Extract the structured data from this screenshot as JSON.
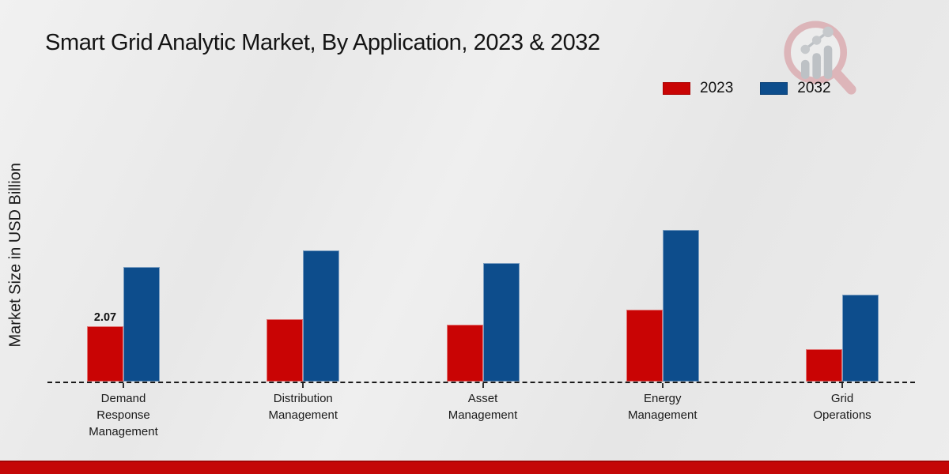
{
  "title": "Smart Grid Analytic Market, By Application, 2023 & 2032",
  "y_axis_label": "Market Size in USD Billion",
  "colors": {
    "series_2023": "#c90404",
    "series_2032": "#0d4d8c",
    "footer_bar": "#c40707",
    "background": "#eaeaea",
    "text": "#1a1a1a"
  },
  "legend": {
    "position": "top-right",
    "items": [
      {
        "label": "2023",
        "color": "#c90404"
      },
      {
        "label": "2032",
        "color": "#0d4d8c"
      }
    ]
  },
  "logo": {
    "name": "magnifier-bar-chart-logo"
  },
  "chart_data": {
    "type": "bar",
    "title": "Smart Grid Analytic Market, By Application, 2023 & 2032",
    "xlabel": "",
    "ylabel": "Market Size in USD Billion",
    "categories": [
      "Demand Response Management",
      "Distribution Management",
      "Asset Management",
      "Energy Management",
      "Grid Operations"
    ],
    "series": [
      {
        "name": "2023",
        "color": "#c90404",
        "values": [
          2.07,
          2.34,
          2.13,
          2.69,
          1.21
        ]
      },
      {
        "name": "2032",
        "color": "#0d4d8c",
        "values": [
          4.29,
          4.91,
          4.44,
          5.68,
          3.25
        ]
      }
    ],
    "data_labels": [
      {
        "series": "2023",
        "category": "Demand Response Management",
        "text": "2.07"
      }
    ],
    "ylim": [
      0,
      6
    ],
    "y_axis_ticks_visible": false,
    "grid": false,
    "baseline_style": "dashed",
    "legend_position": "top-right"
  }
}
